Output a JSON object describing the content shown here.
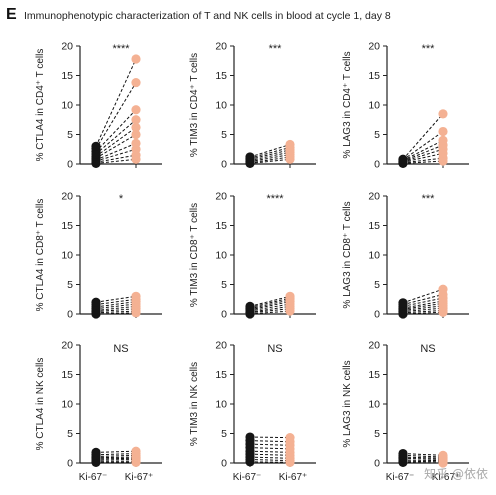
{
  "panel_letter": "E",
  "figure_title": "Immunophenotypic characterization of T and NK cells in blood at cycle 1, day 8",
  "watermark": "知乎 @依依",
  "colors": {
    "ki67_neg": "#151515",
    "ki67_pos": "#f4b193",
    "line": "#111111",
    "axis": "#222222"
  },
  "chart_data": [
    {
      "type": "scatter",
      "ylabel": "% CTLA4 in CD4⁺ T cells",
      "significance": "****",
      "ylim": [
        0,
        20
      ],
      "yticks": [
        0,
        5,
        10,
        15,
        20
      ],
      "categories": [
        "Ki-67⁻",
        "Ki-67⁺"
      ],
      "show_x_labels": false,
      "series": [
        {
          "name": "Ki-67⁻",
          "values": [
            0.1,
            0.3,
            0.5,
            0.7,
            1.0,
            1.3,
            1.7,
            2.1,
            2.6,
            3.0
          ]
        },
        {
          "name": "Ki-67⁺",
          "values": [
            0.8,
            1.5,
            2.5,
            3.5,
            5.0,
            6.2,
            7.5,
            9.2,
            13.8,
            17.8
          ]
        }
      ]
    },
    {
      "type": "scatter",
      "ylabel": "% TIM3 in CD4⁺ T cells",
      "significance": "***",
      "ylim": [
        0,
        20
      ],
      "yticks": [
        0,
        5,
        10,
        15,
        20
      ],
      "categories": [
        "Ki-67⁻",
        "Ki-67⁺"
      ],
      "show_x_labels": false,
      "series": [
        {
          "name": "Ki-67⁻",
          "values": [
            0.1,
            0.2,
            0.4,
            0.6,
            0.8,
            1.0,
            1.2
          ]
        },
        {
          "name": "Ki-67⁺",
          "values": [
            0.8,
            1.2,
            1.6,
            2.0,
            2.4,
            2.8,
            3.3
          ]
        }
      ]
    },
    {
      "type": "scatter",
      "ylabel": "% LAG3 in CD4⁺ T cells",
      "significance": "***",
      "ylim": [
        0,
        20
      ],
      "yticks": [
        0,
        5,
        10,
        15,
        20
      ],
      "categories": [
        "Ki-67⁻",
        "Ki-67⁺"
      ],
      "show_x_labels": false,
      "series": [
        {
          "name": "Ki-67⁻",
          "values": [
            0.1,
            0.2,
            0.3,
            0.4,
            0.5,
            0.6,
            0.7,
            0.8
          ]
        },
        {
          "name": "Ki-67⁺",
          "values": [
            0.5,
            1.0,
            1.8,
            2.5,
            3.2,
            4.0,
            5.5,
            8.5
          ]
        }
      ]
    },
    {
      "type": "scatter",
      "ylabel": "% CTLA4 in CD8⁺ T cells",
      "significance": "*",
      "ylim": [
        0,
        20
      ],
      "yticks": [
        0,
        5,
        10,
        15,
        20
      ],
      "categories": [
        "Ki-67⁻",
        "Ki-67⁺"
      ],
      "show_x_labels": false,
      "series": [
        {
          "name": "Ki-67⁻",
          "values": [
            0.0,
            0.2,
            0.4,
            0.6,
            0.9,
            1.2,
            1.6,
            2.0
          ]
        },
        {
          "name": "Ki-67⁺",
          "values": [
            0.2,
            0.5,
            0.9,
            1.3,
            1.7,
            2.1,
            2.5,
            3.0
          ]
        }
      ]
    },
    {
      "type": "scatter",
      "ylabel": "% TIM3 in CD8⁺ T cells",
      "significance": "****",
      "ylim": [
        0,
        20
      ],
      "yticks": [
        0,
        5,
        10,
        15,
        20
      ],
      "categories": [
        "Ki-67⁻",
        "Ki-67⁺"
      ],
      "show_x_labels": false,
      "series": [
        {
          "name": "Ki-67⁻",
          "values": [
            0.0,
            0.2,
            0.3,
            0.5,
            0.7,
            0.9,
            1.1,
            1.3
          ]
        },
        {
          "name": "Ki-67⁺",
          "values": [
            0.5,
            0.9,
            1.3,
            1.7,
            2.1,
            2.4,
            2.7,
            3.0
          ]
        }
      ]
    },
    {
      "type": "scatter",
      "ylabel": "% LAG3 in CD8⁺ T cells",
      "significance": "***",
      "ylim": [
        0,
        20
      ],
      "yticks": [
        0,
        5,
        10,
        15,
        20
      ],
      "categories": [
        "Ki-67⁻",
        "Ki-67⁺"
      ],
      "show_x_labels": false,
      "series": [
        {
          "name": "Ki-67⁻",
          "values": [
            0.0,
            0.2,
            0.4,
            0.6,
            0.8,
            1.0,
            1.3,
            1.6,
            1.9
          ]
        },
        {
          "name": "Ki-67⁺",
          "values": [
            0.3,
            0.6,
            1.0,
            1.4,
            1.8,
            2.2,
            2.7,
            3.3,
            4.2
          ]
        }
      ]
    },
    {
      "type": "scatter",
      "ylabel": "% CTLA4 in NK cells",
      "significance": "NS",
      "ylim": [
        0,
        20
      ],
      "yticks": [
        0,
        5,
        10,
        15,
        20
      ],
      "categories": [
        "Ki-67⁻",
        "Ki-67⁺"
      ],
      "show_x_labels": true,
      "series": [
        {
          "name": "Ki-67⁻",
          "values": [
            0.1,
            0.3,
            0.5,
            0.7,
            0.9,
            1.1,
            1.4,
            1.8
          ]
        },
        {
          "name": "Ki-67⁺",
          "values": [
            0.1,
            0.3,
            0.6,
            0.8,
            1.0,
            1.3,
            1.6,
            2.0
          ]
        }
      ]
    },
    {
      "type": "scatter",
      "ylabel": "% TIM3 in NK cells",
      "significance": "NS",
      "ylim": [
        0,
        20
      ],
      "yticks": [
        0,
        5,
        10,
        15,
        20
      ],
      "categories": [
        "Ki-67⁻",
        "Ki-67⁺"
      ],
      "show_x_labels": true,
      "series": [
        {
          "name": "Ki-67⁻",
          "values": [
            0.2,
            0.6,
            1.0,
            1.5,
            2.0,
            2.6,
            3.2,
            3.8,
            4.4
          ]
        },
        {
          "name": "Ki-67⁺",
          "values": [
            0.1,
            0.4,
            0.8,
            1.3,
            1.8,
            2.4,
            3.0,
            3.6,
            4.3
          ]
        }
      ]
    },
    {
      "type": "scatter",
      "ylabel": "% LAG3 in NK cells",
      "significance": "NS",
      "ylim": [
        0,
        20
      ],
      "yticks": [
        0,
        5,
        10,
        15,
        20
      ],
      "categories": [
        "Ki-67⁻",
        "Ki-67⁺"
      ],
      "show_x_labels": true,
      "series": [
        {
          "name": "Ki-67⁻",
          "values": [
            0.1,
            0.3,
            0.5,
            0.8,
            1.0,
            1.3,
            1.6
          ]
        },
        {
          "name": "Ki-67⁺",
          "values": [
            0.0,
            0.2,
            0.4,
            0.6,
            0.8,
            1.0,
            1.3
          ]
        }
      ]
    }
  ]
}
